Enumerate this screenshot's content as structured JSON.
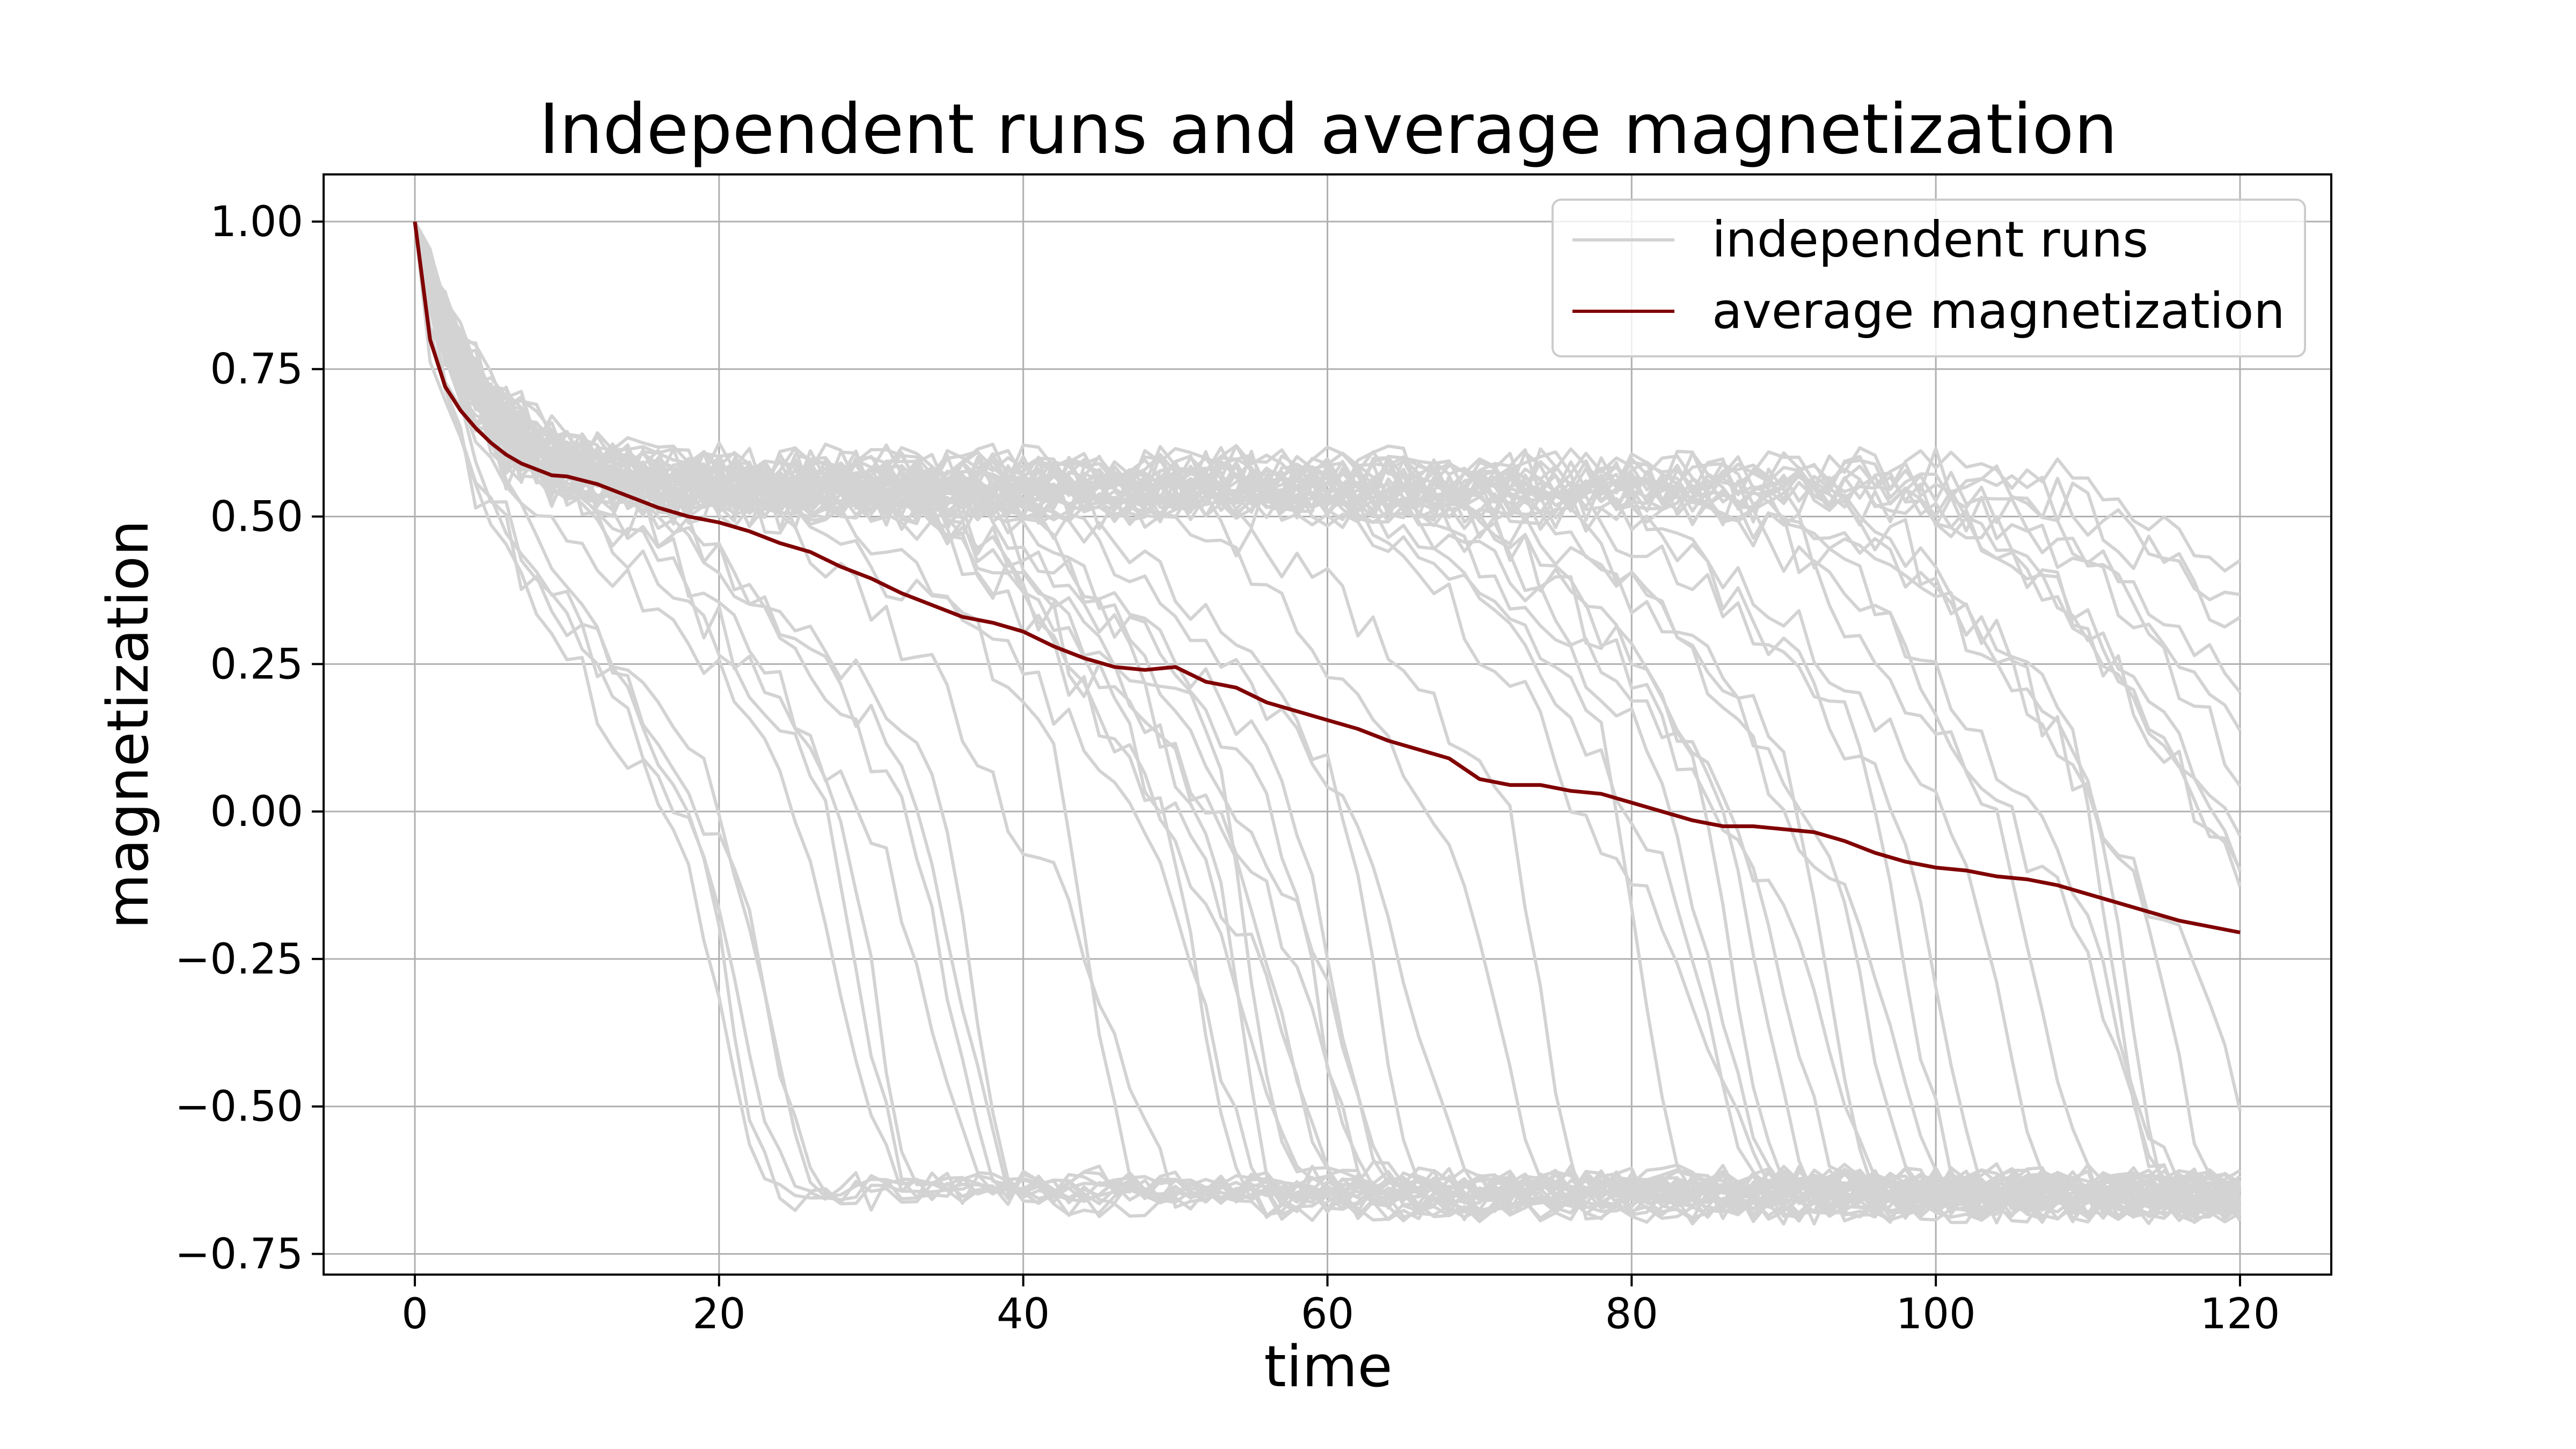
{
  "chart_data": {
    "type": "line",
    "title": "Independent runs and average magnetization",
    "xlabel": "time",
    "ylabel": "magnetization",
    "xlim": [
      -6,
      126
    ],
    "ylim": [
      -0.785,
      1.08
    ],
    "x_ticks": [
      0,
      20,
      40,
      60,
      80,
      100,
      120
    ],
    "y_ticks": [
      1.0,
      0.75,
      0.5,
      0.25,
      0.0,
      -0.25,
      -0.5,
      -0.75
    ],
    "x_tick_labels": [
      "0",
      "20",
      "40",
      "60",
      "80",
      "100",
      "120"
    ],
    "y_tick_labels": [
      "1.00",
      "0.75",
      "0.50",
      "0.25",
      "0.00",
      "−0.25",
      "−0.50",
      "−0.75"
    ],
    "grid": true,
    "legend_position": "upper right",
    "legend": [
      "independent runs",
      "average magnetization"
    ],
    "colors": {
      "runs": "#d3d3d3",
      "average": "#800000"
    },
    "independent_runs": {
      "count": 60,
      "x_start": 0,
      "x_end": 120,
      "x_step": 1,
      "start_value": 1.0,
      "metastable_level": 0.55,
      "stable_level": -0.65,
      "transition_time_range": [
        15,
        130
      ]
    },
    "series": [
      {
        "name": "average magnetization",
        "x": [
          0,
          1,
          2,
          3,
          4,
          5,
          6,
          7,
          8,
          9,
          10,
          12,
          14,
          16,
          18,
          20,
          22,
          24,
          26,
          28,
          30,
          32,
          34,
          36,
          38,
          40,
          42,
          44,
          46,
          48,
          50,
          52,
          54,
          56,
          58,
          60,
          62,
          64,
          66,
          68,
          70,
          72,
          74,
          76,
          78,
          80,
          82,
          84,
          86,
          88,
          90,
          92,
          94,
          96,
          98,
          100,
          102,
          104,
          106,
          108,
          110,
          112,
          114,
          116,
          118,
          120
        ],
        "y": [
          1.0,
          0.8,
          0.72,
          0.68,
          0.65,
          0.625,
          0.605,
          0.59,
          0.58,
          0.57,
          0.568,
          0.555,
          0.535,
          0.515,
          0.5,
          0.49,
          0.475,
          0.455,
          0.44,
          0.415,
          0.395,
          0.37,
          0.35,
          0.33,
          0.32,
          0.305,
          0.28,
          0.26,
          0.245,
          0.24,
          0.245,
          0.22,
          0.21,
          0.185,
          0.17,
          0.155,
          0.14,
          0.12,
          0.105,
          0.09,
          0.055,
          0.045,
          0.045,
          0.035,
          0.03,
          0.015,
          0.0,
          -0.015,
          -0.025,
          -0.025,
          -0.03,
          -0.035,
          -0.05,
          -0.07,
          -0.085,
          -0.095,
          -0.1,
          -0.11,
          -0.115,
          -0.125,
          -0.14,
          -0.155,
          -0.17,
          -0.185,
          -0.195,
          -0.205
        ]
      }
    ]
  }
}
